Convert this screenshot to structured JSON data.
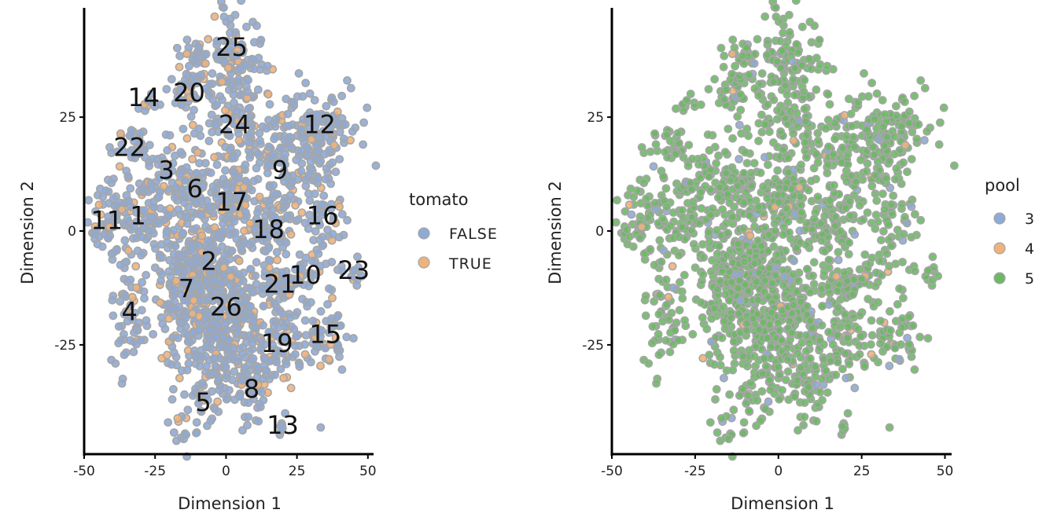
{
  "figure": {
    "background": "#ffffff"
  },
  "chart_data": [
    {
      "type": "scatter",
      "xlabel": "Dimension 1",
      "ylabel": "Dimension 2",
      "xlim": [
        -50,
        52
      ],
      "ylim": [
        -49,
        49
      ],
      "x_ticks": [
        -50,
        -25,
        0,
        25,
        50
      ],
      "y_ticks": [
        -25,
        0,
        25
      ],
      "grid": false,
      "point_outline_color": "#a6a6a6",
      "legend": {
        "title": "tomato",
        "placement": "right",
        "entries": [
          {
            "label": "FALSE",
            "color": "#8eaad6"
          },
          {
            "label": "TRUE",
            "color": "#efb27c"
          }
        ]
      },
      "clusters": [
        {
          "label": "1",
          "x": -31,
          "y": 3
        },
        {
          "label": "2",
          "x": -6,
          "y": -7
        },
        {
          "label": "3",
          "x": -21,
          "y": 13
        },
        {
          "label": "4",
          "x": -34,
          "y": -18
        },
        {
          "label": "5",
          "x": -8,
          "y": -38
        },
        {
          "label": "6",
          "x": -11,
          "y": 9
        },
        {
          "label": "7",
          "x": -14,
          "y": -13
        },
        {
          "label": "8",
          "x": 9,
          "y": -35
        },
        {
          "label": "9",
          "x": 19,
          "y": 13
        },
        {
          "label": "10",
          "x": 28,
          "y": -10
        },
        {
          "label": "11",
          "x": -42,
          "y": 2
        },
        {
          "label": "12",
          "x": 33,
          "y": 23
        },
        {
          "label": "13",
          "x": 20,
          "y": -43
        },
        {
          "label": "14",
          "x": -29,
          "y": 29
        },
        {
          "label": "15",
          "x": 35,
          "y": -23
        },
        {
          "label": "16",
          "x": 34,
          "y": 3
        },
        {
          "label": "17",
          "x": 2,
          "y": 6
        },
        {
          "label": "18",
          "x": 15,
          "y": 0
        },
        {
          "label": "19",
          "x": 18,
          "y": -25
        },
        {
          "label": "20",
          "x": -13,
          "y": 30
        },
        {
          "label": "21",
          "x": 19,
          "y": -12
        },
        {
          "label": "22",
          "x": -34,
          "y": 18
        },
        {
          "label": "23",
          "x": 45,
          "y": -9
        },
        {
          "label": "24",
          "x": 3,
          "y": 23
        },
        {
          "label": "25",
          "x": 2,
          "y": 40
        },
        {
          "label": "26",
          "x": 0,
          "y": -17
        }
      ]
    },
    {
      "type": "scatter",
      "xlabel": "Dimension 1",
      "ylabel": "Dimension 2",
      "xlim": [
        -50,
        52
      ],
      "ylim": [
        -49,
        49
      ],
      "x_ticks": [
        -50,
        -25,
        0,
        25,
        50
      ],
      "y_ticks": [
        -25,
        0,
        25
      ],
      "grid": false,
      "point_outline_color": "#a6a6a6",
      "legend": {
        "title": "pool",
        "placement": "right",
        "entries": [
          {
            "label": "3",
            "color": "#8eaad6"
          },
          {
            "label": "4",
            "color": "#efb27c"
          },
          {
            "label": "5",
            "color": "#6db865"
          }
        ]
      }
    }
  ]
}
